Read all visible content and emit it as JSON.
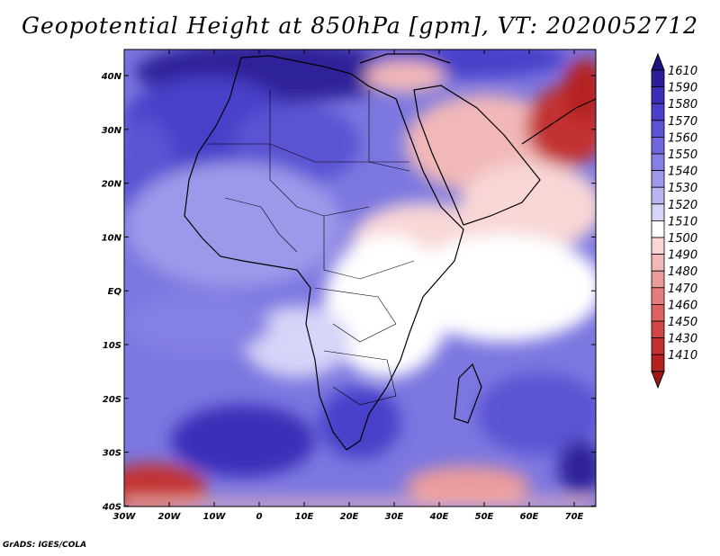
{
  "title": "Geopotential Height at 850hPa [gpm], VT: 2020052712",
  "credit": "GrADS: IGES/COLA",
  "map": {
    "lat_labels": [
      "40N",
      "30N",
      "20N",
      "10N",
      "EQ",
      "10S",
      "20S",
      "30S",
      "40S"
    ],
    "lon_labels": [
      "30W",
      "20W",
      "10W",
      "0",
      "10E",
      "20E",
      "30E",
      "40E",
      "50E",
      "60E",
      "70E"
    ]
  },
  "colorbar": {
    "levels": [
      {
        "label": "1610",
        "color": "#2a1f96"
      },
      {
        "label": "1590",
        "color": "#3b2fb8"
      },
      {
        "label": "1580",
        "color": "#4a40c9"
      },
      {
        "label": "1570",
        "color": "#5b53d3"
      },
      {
        "label": "1560",
        "color": "#6e68dc"
      },
      {
        "label": "1550",
        "color": "#8580e3"
      },
      {
        "label": "1540",
        "color": "#9d99ea"
      },
      {
        "label": "1530",
        "color": "#b8b5f0"
      },
      {
        "label": "1520",
        "color": "#d6d4f7"
      },
      {
        "label": "1510",
        "color": "#ffffff"
      },
      {
        "label": "1500",
        "color": "#f8d6d6"
      },
      {
        "label": "1490",
        "color": "#f2b8b8"
      },
      {
        "label": "1480",
        "color": "#ec9b9b"
      },
      {
        "label": "1470",
        "color": "#e47e7e"
      },
      {
        "label": "1460",
        "color": "#dc6262"
      },
      {
        "label": "1450",
        "color": "#d14747"
      },
      {
        "label": "1430",
        "color": "#c33030"
      },
      {
        "label": "1410",
        "color": "#b52020"
      }
    ],
    "top_color": "#1c1580",
    "bottom_color": "#a01515"
  }
}
